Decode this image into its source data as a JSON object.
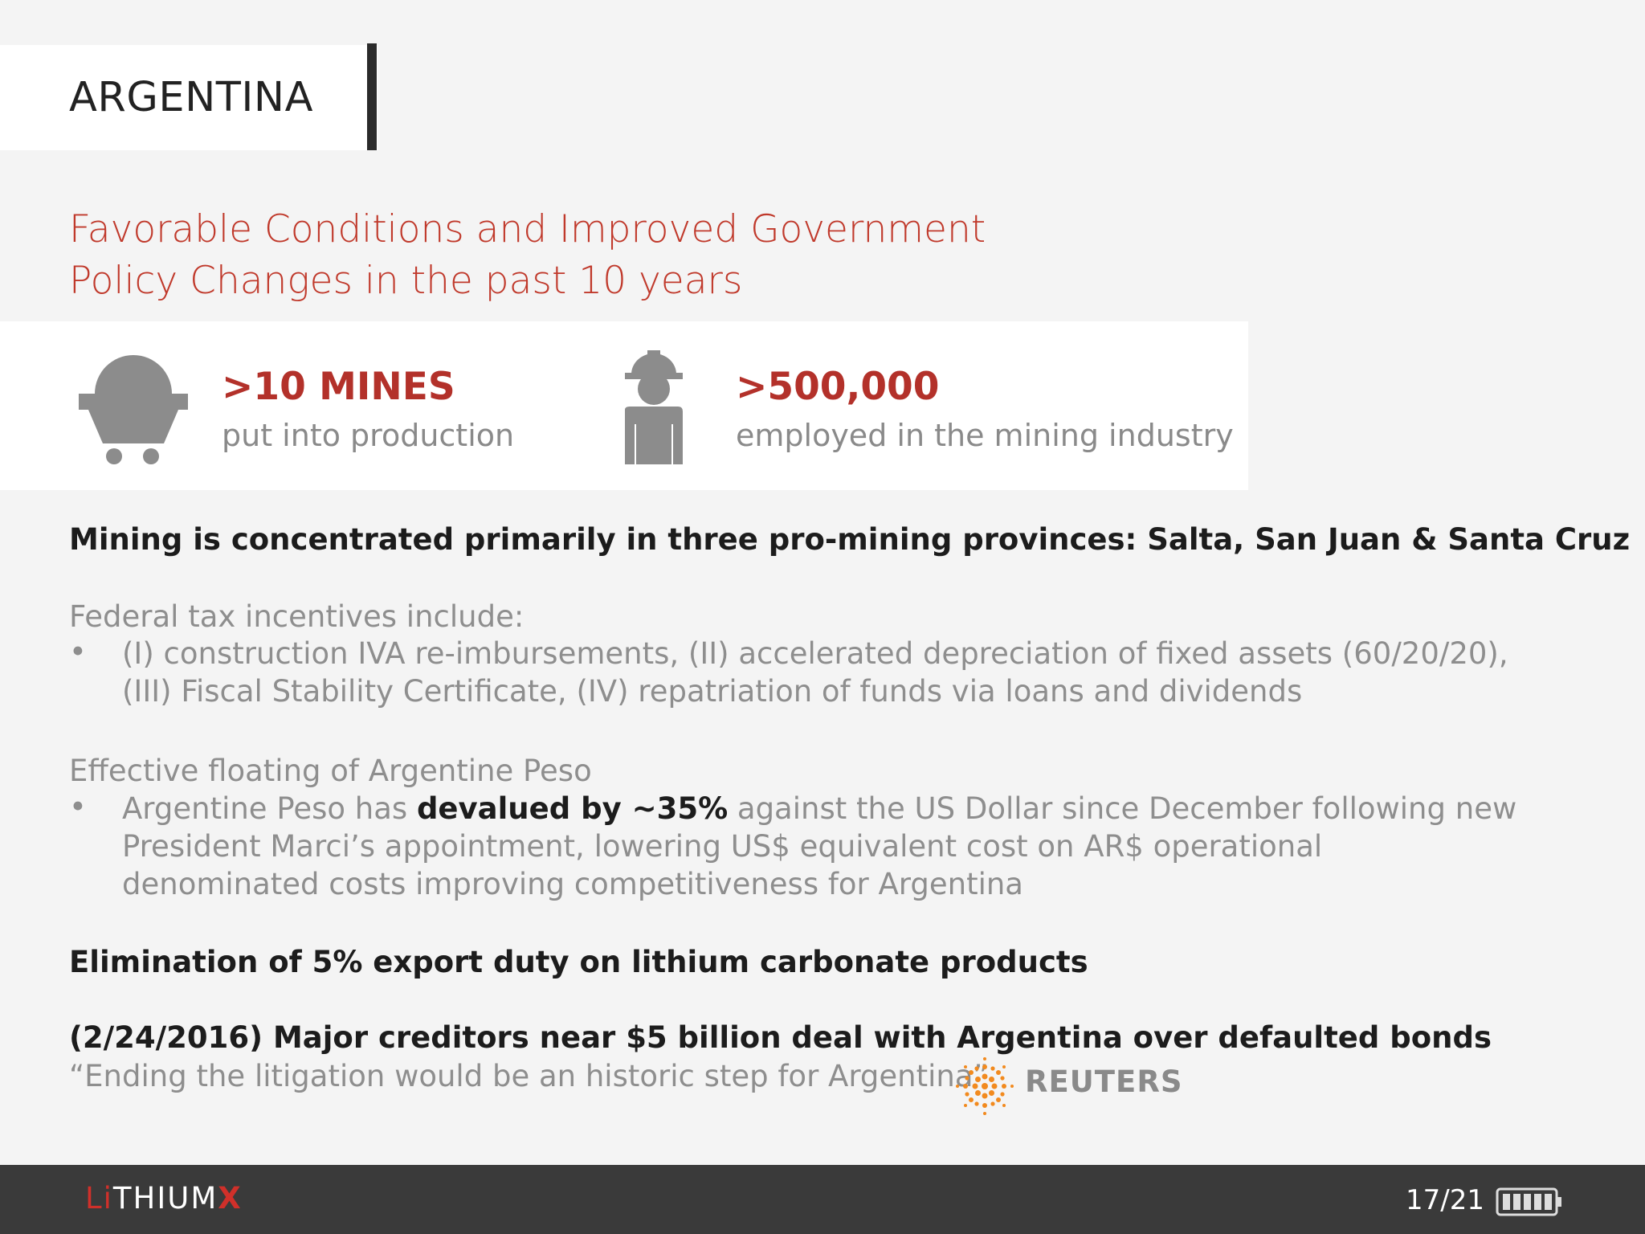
{
  "header": {
    "title": "ARGENTINA"
  },
  "subtitle": {
    "line1": "Favorable Conditions and Improved Government",
    "line2": "Policy Changes in the past 10 years"
  },
  "stats": [
    {
      "icon": "mine-cart-icon",
      "value": ">10 MINES",
      "label": "put into production"
    },
    {
      "icon": "miner-worker-icon",
      "value": ">500,000",
      "label": "employed in the mining industry"
    }
  ],
  "content": {
    "mining_line": "Mining is concentrated primarily in three pro-mining provinces: Salta, San Juan & Santa Cruz",
    "tax_heading": "Federal tax incentives include:",
    "tax_bullet_line1": "(I) construction IVA re-imbursements, (II) accelerated depreciation of fixed assets (60/20/20),",
    "tax_bullet_line2": "(III) Fiscal Stability Certificate, (IV) repatriation of funds via loans and dividends",
    "peso_heading": "Effective floating of Argentine Peso",
    "peso_bullet_pre": "Argentine Peso has ",
    "peso_bullet_bold": "devalued by ~35%",
    "peso_bullet_post": " against the US Dollar since December following new",
    "peso_bullet_line2": "President Marci’s appointment, lowering US$ equivalent cost on AR$ operational",
    "peso_bullet_line3": "denominated costs improving competitiveness for Argentina",
    "export_line": "Elimination of 5% export duty on lithium carbonate products",
    "news_line": "(2/24/2016) Major creditors near $5 billion deal with Argentina over defaulted bonds",
    "quote": "“Ending the litigation would be an historic step for Argentina”",
    "source": "REUTERS",
    "bullet_char": "•"
  },
  "footer": {
    "logo_li": "Li",
    "logo_thium": "THIUM",
    "logo_x": "X",
    "page": "17/21"
  },
  "colors": {
    "accent": "#c0392b",
    "footer_bg": "#3a3a3a",
    "body_bg": "#f4f4f4",
    "icon_gray": "#8c8c8c",
    "reuters_orange": "#f28a1e"
  }
}
